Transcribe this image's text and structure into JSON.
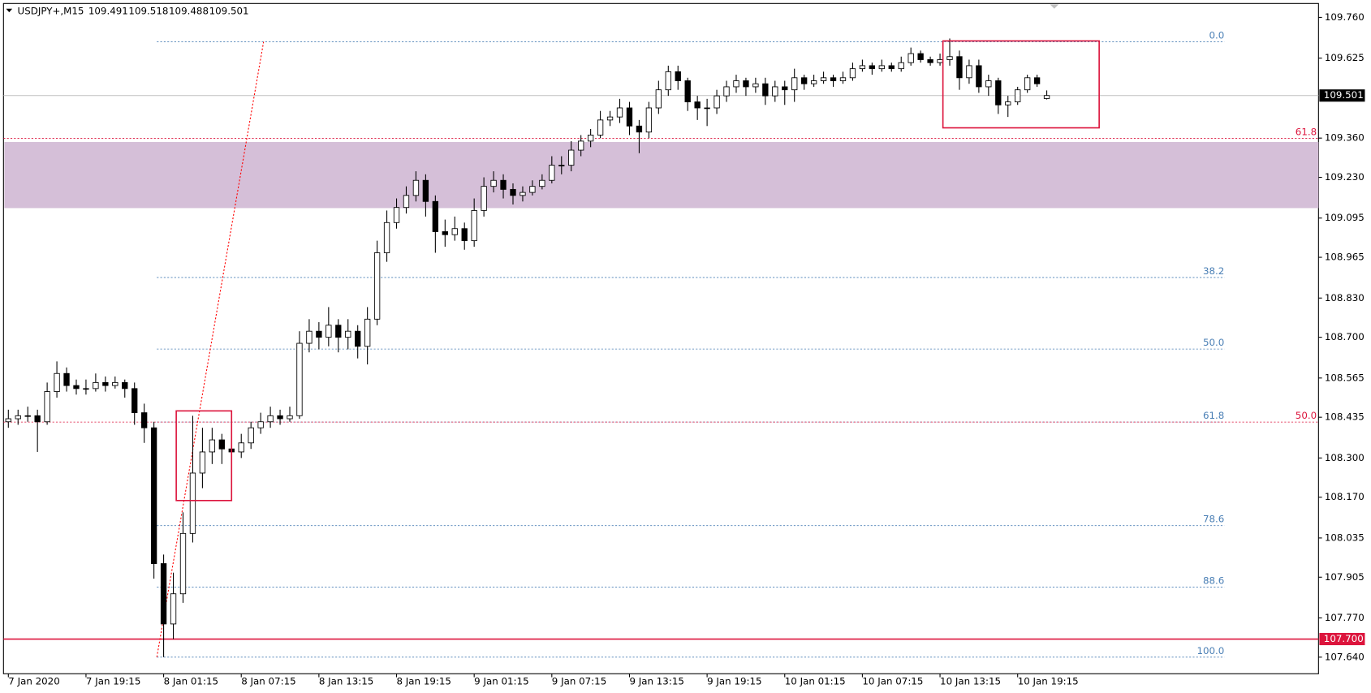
{
  "chart_data": {
    "type": "candlestick",
    "symbol": "USDJPY+,M15",
    "candles": [
      [
        108.42,
        108.46,
        108.4,
        108.43
      ],
      [
        108.43,
        108.46,
        108.41,
        108.44
      ],
      [
        108.44,
        108.47,
        108.42,
        108.44
      ],
      [
        108.44,
        108.46,
        108.32,
        108.42
      ],
      [
        108.42,
        108.55,
        108.41,
        108.52
      ],
      [
        108.52,
        108.62,
        108.5,
        108.58
      ],
      [
        108.58,
        108.6,
        108.52,
        108.54
      ],
      [
        108.54,
        108.56,
        108.51,
        108.53
      ],
      [
        108.53,
        108.56,
        108.51,
        108.53
      ],
      [
        108.53,
        108.58,
        108.52,
        108.55
      ],
      [
        108.55,
        108.57,
        108.52,
        108.54
      ],
      [
        108.54,
        108.57,
        108.53,
        108.55
      ],
      [
        108.55,
        108.56,
        108.5,
        108.53
      ],
      [
        108.53,
        108.55,
        108.41,
        108.45
      ],
      [
        108.45,
        108.48,
        108.35,
        108.4
      ],
      [
        108.4,
        108.42,
        107.9,
        107.95
      ],
      [
        107.95,
        107.98,
        107.64,
        107.75
      ],
      [
        107.75,
        107.92,
        107.7,
        107.85
      ],
      [
        107.85,
        108.12,
        107.82,
        108.05
      ],
      [
        108.05,
        108.44,
        108.02,
        108.25
      ],
      [
        108.25,
        108.4,
        108.2,
        108.32
      ],
      [
        108.32,
        108.4,
        108.28,
        108.36
      ],
      [
        108.36,
        108.38,
        108.28,
        108.33
      ],
      [
        108.33,
        108.37,
        108.27,
        108.32
      ],
      [
        108.32,
        108.38,
        108.3,
        108.35
      ],
      [
        108.35,
        108.42,
        108.33,
        108.4
      ],
      [
        108.4,
        108.45,
        108.38,
        108.42
      ],
      [
        108.42,
        108.47,
        108.4,
        108.44
      ],
      [
        108.44,
        108.46,
        108.41,
        108.43
      ],
      [
        108.43,
        108.47,
        108.42,
        108.44
      ],
      [
        108.44,
        108.72,
        108.43,
        108.68
      ],
      [
        108.68,
        108.76,
        108.65,
        108.72
      ],
      [
        108.72,
        108.75,
        108.66,
        108.7
      ],
      [
        108.7,
        108.8,
        108.67,
        108.74
      ],
      [
        108.74,
        108.76,
        108.65,
        108.7
      ],
      [
        108.7,
        108.76,
        108.66,
        108.72
      ],
      [
        108.72,
        108.74,
        108.63,
        108.67
      ],
      [
        108.67,
        108.8,
        108.61,
        108.76
      ],
      [
        108.76,
        109.02,
        108.74,
        108.98
      ],
      [
        108.98,
        109.12,
        108.95,
        109.08
      ],
      [
        109.08,
        109.16,
        109.06,
        109.13
      ],
      [
        109.13,
        109.2,
        109.11,
        109.17
      ],
      [
        109.17,
        109.25,
        109.15,
        109.22
      ],
      [
        109.22,
        109.24,
        109.1,
        109.15
      ],
      [
        109.15,
        109.17,
        108.98,
        109.05
      ],
      [
        109.05,
        109.09,
        109.0,
        109.04
      ],
      [
        109.04,
        109.1,
        109.02,
        109.06
      ],
      [
        109.06,
        109.08,
        108.99,
        109.02
      ],
      [
        109.02,
        109.16,
        109.0,
        109.12
      ],
      [
        109.12,
        109.23,
        109.1,
        109.2
      ],
      [
        109.2,
        109.25,
        109.18,
        109.22
      ],
      [
        109.22,
        109.24,
        109.16,
        109.19
      ],
      [
        109.19,
        109.21,
        109.14,
        109.17
      ],
      [
        109.17,
        109.2,
        109.15,
        109.18
      ],
      [
        109.18,
        109.22,
        109.17,
        109.2
      ],
      [
        109.2,
        109.24,
        109.19,
        109.22
      ],
      [
        109.22,
        109.3,
        109.21,
        109.27
      ],
      [
        109.27,
        109.3,
        109.24,
        109.27
      ],
      [
        109.27,
        109.35,
        109.25,
        109.32
      ],
      [
        109.32,
        109.37,
        109.3,
        109.35
      ],
      [
        109.35,
        109.39,
        109.33,
        109.37
      ],
      [
        109.37,
        109.45,
        109.36,
        109.42
      ],
      [
        109.42,
        109.45,
        109.4,
        109.43
      ],
      [
        109.43,
        109.49,
        109.41,
        109.46
      ],
      [
        109.46,
        109.48,
        109.37,
        109.4
      ],
      [
        109.4,
        109.42,
        109.31,
        109.38
      ],
      [
        109.38,
        109.48,
        109.36,
        109.46
      ],
      [
        109.46,
        109.55,
        109.44,
        109.52
      ],
      [
        109.52,
        109.6,
        109.5,
        109.58
      ],
      [
        109.58,
        109.6,
        109.52,
        109.55
      ],
      [
        109.55,
        109.56,
        109.45,
        109.48
      ],
      [
        109.48,
        109.5,
        109.42,
        109.46
      ],
      [
        109.46,
        109.49,
        109.4,
        109.46
      ],
      [
        109.46,
        109.52,
        109.44,
        109.5
      ],
      [
        109.5,
        109.55,
        109.48,
        109.53
      ],
      [
        109.53,
        109.57,
        109.51,
        109.55
      ],
      [
        109.55,
        109.56,
        109.5,
        109.53
      ],
      [
        109.53,
        109.56,
        109.51,
        109.54
      ],
      [
        109.54,
        109.56,
        109.47,
        109.5
      ],
      [
        109.5,
        109.55,
        109.48,
        109.53
      ],
      [
        109.53,
        109.55,
        109.47,
        109.52
      ],
      [
        109.52,
        109.59,
        109.48,
        109.56
      ],
      [
        109.56,
        109.57,
        109.52,
        109.54
      ],
      [
        109.54,
        109.57,
        109.53,
        109.55
      ],
      [
        109.55,
        109.58,
        109.54,
        109.56
      ],
      [
        109.56,
        109.57,
        109.53,
        109.55
      ],
      [
        109.55,
        109.58,
        109.54,
        109.56
      ],
      [
        109.56,
        109.61,
        109.55,
        109.59
      ],
      [
        109.59,
        109.62,
        109.58,
        109.6
      ],
      [
        109.6,
        109.61,
        109.57,
        109.59
      ],
      [
        109.59,
        109.62,
        109.58,
        109.6
      ],
      [
        109.6,
        109.61,
        109.58,
        109.59
      ],
      [
        109.59,
        109.63,
        109.58,
        109.61
      ],
      [
        109.61,
        109.66,
        109.6,
        109.64
      ],
      [
        109.64,
        109.65,
        109.61,
        109.62
      ],
      [
        109.62,
        109.63,
        109.6,
        109.61
      ],
      [
        109.61,
        109.64,
        109.6,
        109.62
      ],
      [
        109.62,
        109.69,
        109.6,
        109.63
      ],
      [
        109.63,
        109.65,
        109.52,
        109.56
      ],
      [
        109.56,
        109.62,
        109.54,
        109.6
      ],
      [
        109.6,
        109.62,
        109.51,
        109.53
      ],
      [
        109.53,
        109.57,
        109.5,
        109.55
      ],
      [
        109.55,
        109.56,
        109.44,
        109.47
      ],
      [
        109.47,
        109.5,
        109.43,
        109.48
      ],
      [
        109.48,
        109.53,
        109.47,
        109.52
      ],
      [
        109.52,
        109.57,
        109.51,
        109.56
      ],
      [
        109.56,
        109.57,
        109.53,
        109.54
      ],
      [
        109.491,
        109.518,
        109.488,
        109.501
      ]
    ],
    "bull_color": "#ffffff",
    "bear_color": "#000000",
    "xlim": [
      -0.5,
      135
    ],
    "xticks": [
      {
        "value": 0,
        "label": "7 Jan 2020"
      },
      {
        "value": 8,
        "label": "7 Jan 19:15"
      },
      {
        "value": 16,
        "label": "8 Jan 01:15"
      },
      {
        "value": 24,
        "label": "8 Jan 07:15"
      },
      {
        "value": 32,
        "label": "8 Jan 13:15"
      },
      {
        "value": 40,
        "label": "8 Jan 19:15"
      },
      {
        "value": 48,
        "label": "9 Jan 01:15"
      },
      {
        "value": 56,
        "label": "9 Jan 07:15"
      },
      {
        "value": 64,
        "label": "9 Jan 13:15"
      },
      {
        "value": 72,
        "label": "9 Jan 19:15"
      },
      {
        "value": 80,
        "label": "10 Jan 01:15"
      },
      {
        "value": 88,
        "label": "10 Jan 07:15"
      },
      {
        "value": 96,
        "label": "10 Jan 13:15"
      },
      {
        "value": 104,
        "label": "10 Jan 19:15"
      }
    ],
    "ylim": [
      107.585,
      109.806
    ],
    "yticks": [
      {
        "value": 109.76,
        "label": "109.760"
      },
      109.625,
      {
        "value": 109.36,
        "label": "109.360"
      },
      {
        "value": 109.23,
        "label": "109.230"
      },
      109.095,
      108.965,
      {
        "value": 108.83,
        "label": "108.830"
      },
      {
        "value": 108.7,
        "label": "108.700"
      },
      108.565,
      108.435,
      {
        "value": 108.3,
        "label": "108.300"
      },
      {
        "value": 108.17,
        "label": "108.170"
      },
      108.035,
      107.905,
      {
        "value": 107.77,
        "label": "107.770"
      },
      {
        "value": 107.64,
        "label": "107.640"
      }
    ],
    "fib": {
      "color": "#4a7fb5",
      "x": [
        15.3,
        125.3
      ],
      "levels": [
        {
          "label": "0.0",
          "value": 109.679
        },
        {
          "label": "38.2",
          "value": 108.898
        },
        {
          "label": "50.0",
          "value": 108.661
        },
        {
          "label": "61.8",
          "value": 108.419
        },
        {
          "label": "78.6",
          "value": 108.076
        },
        {
          "label": "88.6",
          "value": 107.872
        },
        {
          "label": "100.0",
          "value": 107.64
        }
      ]
    },
    "fib2": {
      "color": "#dc143c",
      "levels": [
        {
          "label": "61.8",
          "value": 109.359
        },
        {
          "label": "50.0",
          "value": 108.419
        }
      ]
    },
    "zone": {
      "from": 109.128,
      "to": 109.347,
      "color": "#d5bfd8"
    },
    "support": {
      "value": 107.7,
      "label": "107.700",
      "color": "#dc143c"
    },
    "trendline": {
      "x": [
        15.3,
        26.3
      ],
      "y": [
        107.64,
        109.679
      ],
      "color": "#ff0000"
    },
    "boxes": [
      {
        "x": [
          17.3,
          23.0
        ],
        "y": [
          108.159,
          108.456
        ]
      },
      {
        "x": [
          96.3,
          112.4
        ],
        "y": [
          109.394,
          109.682
        ]
      }
    ],
    "box_color": "#dc143c",
    "price_line_color": "#c0c0c0"
  }
}
